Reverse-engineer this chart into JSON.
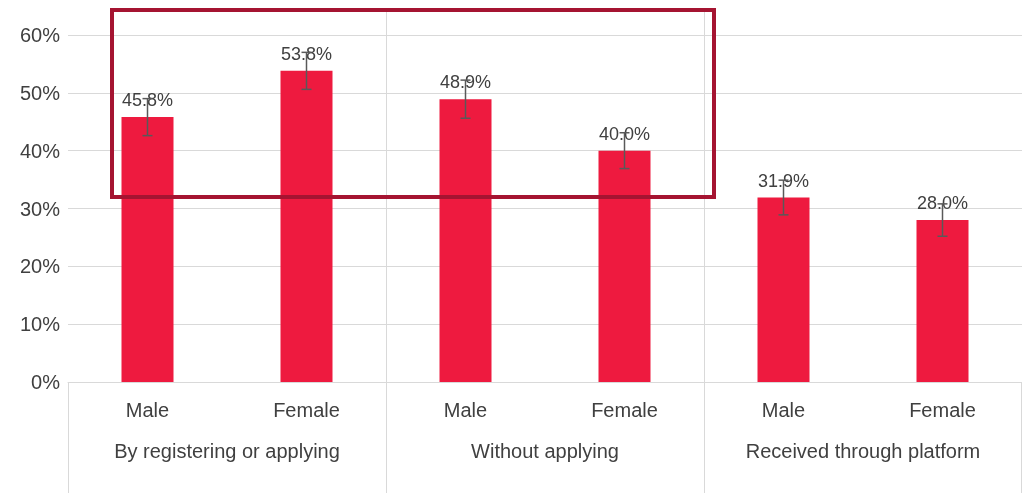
{
  "chart_data": {
    "type": "bar",
    "categories": [
      "Male",
      "Female",
      "Male",
      "Female",
      "Male",
      "Female"
    ],
    "values": [
      45.8,
      53.8,
      48.9,
      40.0,
      31.9,
      28.0
    ],
    "errors": [
      3.2,
      3.2,
      3.3,
      3.1,
      3.0,
      2.8
    ],
    "value_labels": [
      "45.8%",
      "53.8%",
      "48.9%",
      "40.0%",
      "31.9%",
      "28.0%"
    ],
    "color": "#ee1a3f",
    "ylim": [
      0,
      60
    ],
    "yticks": [
      {
        "value": 0,
        "label": "0%"
      },
      {
        "value": 10,
        "label": "10%"
      },
      {
        "value": 20,
        "label": "20%"
      },
      {
        "value": 30,
        "label": "30%"
      },
      {
        "value": 40,
        "label": "40%"
      },
      {
        "value": 50,
        "label": "50%"
      },
      {
        "value": 60,
        "label": "60%"
      }
    ],
    "grid": "y",
    "annotations": [
      "By registering or applying",
      "Without applying",
      "Received through platform"
    ]
  }
}
